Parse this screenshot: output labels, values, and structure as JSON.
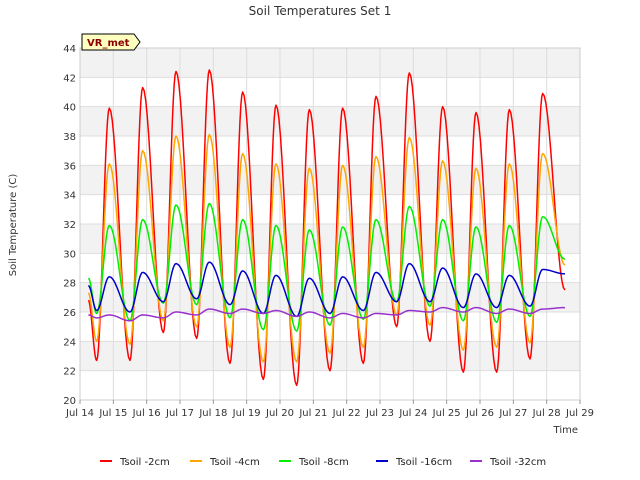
{
  "chart_data": {
    "type": "line",
    "title": "Soil Temperatures Set 1",
    "xlabel": "Time",
    "ylabel": "Soil Temperature (C)",
    "ylim": [
      20,
      44
    ],
    "xlim": [
      "2023-07-14",
      "2023-07-29"
    ],
    "yticks": [
      20,
      22,
      24,
      26,
      28,
      30,
      32,
      34,
      36,
      38,
      40,
      42,
      44
    ],
    "xticks": [
      "Jul 14",
      "Jul 15",
      "Jul 16",
      "Jul 17",
      "Jul 18",
      "Jul 19",
      "Jul 20",
      "Jul 21",
      "Jul 22",
      "Jul 23",
      "Jul 24",
      "Jul 25",
      "Jul 26",
      "Jul 27",
      "Jul 28",
      "Jul 29"
    ],
    "grid": true,
    "legend_position": "bottom",
    "annotation": "VR_met",
    "x_day_labels": [
      "Jul 14",
      "Jul 15",
      "Jul 16",
      "Jul 17",
      "Jul 18",
      "Jul 19",
      "Jul 20",
      "Jul 21",
      "Jul 22",
      "Jul 23",
      "Jul 24",
      "Jul 25",
      "Jul 26",
      "Jul 27",
      "Jul 28"
    ],
    "series": [
      {
        "name": "Tsoil -2cm",
        "color": "#ff0000",
        "daily_max": [
          39.9,
          41.3,
          42.4,
          42.5,
          41.0,
          40.1,
          39.8,
          39.9,
          40.7,
          42.3,
          40.0,
          39.6,
          39.8,
          40.9
        ],
        "daily_min": [
          22.7,
          22.7,
          24.6,
          24.2,
          22.5,
          21.4,
          21.0,
          22.0,
          22.5,
          25.0,
          24.0,
          21.9,
          21.9,
          22.8
        ],
        "start": 26.8,
        "end": 27.5
      },
      {
        "name": "Tsoil -4cm",
        "color": "#ffa500",
        "daily_max": [
          36.1,
          37.0,
          38.0,
          38.1,
          36.8,
          36.1,
          35.8,
          36.0,
          36.6,
          37.9,
          36.3,
          35.8,
          36.1,
          36.8
        ],
        "daily_min": [
          24.0,
          23.8,
          25.4,
          25.0,
          23.6,
          22.6,
          22.6,
          23.2,
          23.6,
          25.8,
          25.1,
          23.4,
          23.6,
          23.9
        ],
        "start": 27.3,
        "end": 29.2
      },
      {
        "name": "Tsoil -8cm",
        "color": "#00ee00",
        "daily_max": [
          31.9,
          32.3,
          33.3,
          33.4,
          32.3,
          31.9,
          31.6,
          31.8,
          32.3,
          33.2,
          32.3,
          31.8,
          31.9,
          32.5
        ],
        "daily_min": [
          25.9,
          25.4,
          26.6,
          26.5,
          25.6,
          24.8,
          24.7,
          25.1,
          25.5,
          26.7,
          26.4,
          25.4,
          25.3,
          25.7
        ],
        "start": 28.3,
        "end": 29.6
      },
      {
        "name": "Tsoil -16cm",
        "color": "#0000cc",
        "daily_max": [
          28.4,
          28.7,
          29.3,
          29.4,
          28.8,
          28.5,
          28.3,
          28.4,
          28.7,
          29.3,
          29.0,
          28.6,
          28.5,
          28.9
        ],
        "daily_min": [
          26.1,
          26.0,
          26.7,
          26.9,
          26.5,
          25.9,
          25.7,
          25.9,
          26.1,
          26.7,
          26.7,
          26.3,
          26.3,
          26.4
        ],
        "start": 27.8,
        "end": 28.6
      },
      {
        "name": "Tsoil -32cm",
        "color": "#9932cc",
        "daily_max": [
          25.8,
          25.8,
          26.0,
          26.2,
          26.2,
          26.1,
          26.0,
          25.9,
          25.9,
          26.1,
          26.3,
          26.3,
          26.2,
          26.2
        ],
        "daily_min": [
          25.6,
          25.4,
          25.6,
          25.8,
          25.9,
          25.9,
          25.7,
          25.6,
          25.6,
          25.8,
          26.0,
          26.0,
          25.9,
          25.9
        ],
        "start": 25.8,
        "end": 26.3
      }
    ]
  }
}
